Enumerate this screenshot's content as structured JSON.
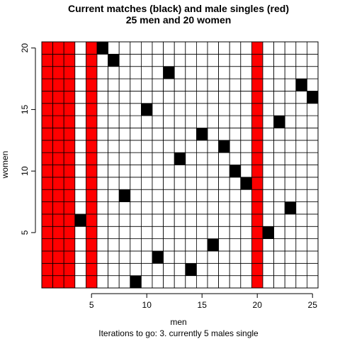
{
  "chart_data": {
    "type": "heatmap",
    "title_line1": "Current matches (black) and male singles (red)",
    "title_line2": "25 men and 20 women",
    "xlabel": "men",
    "ylabel": "women",
    "subtitle": "Iterations to go: 3. currently 5 males single",
    "xlim": [
      0.5,
      25.5
    ],
    "ylim": [
      0.5,
      20.5
    ],
    "x_ticks": [
      5,
      10,
      15,
      20,
      25
    ],
    "y_ticks": [
      5,
      10,
      15,
      20
    ],
    "n_men": 25,
    "n_women": 20,
    "single_men": [
      1,
      2,
      3,
      5,
      20
    ],
    "matches": [
      {
        "man": 4,
        "woman": 6
      },
      {
        "man": 6,
        "woman": 20
      },
      {
        "man": 7,
        "woman": 19
      },
      {
        "man": 8,
        "woman": 8
      },
      {
        "man": 9,
        "woman": 1
      },
      {
        "man": 10,
        "woman": 15
      },
      {
        "man": 11,
        "woman": 3
      },
      {
        "man": 12,
        "woman": 18
      },
      {
        "man": 13,
        "woman": 11
      },
      {
        "man": 14,
        "woman": 2
      },
      {
        "man": 15,
        "woman": 13
      },
      {
        "man": 16,
        "woman": 4
      },
      {
        "man": 17,
        "woman": 12
      },
      {
        "man": 18,
        "woman": 10
      },
      {
        "man": 19,
        "woman": 9
      },
      {
        "man": 21,
        "woman": 5
      },
      {
        "man": 22,
        "woman": 14
      },
      {
        "man": 23,
        "woman": 7
      },
      {
        "man": 24,
        "woman": 17
      },
      {
        "man": 25,
        "woman": 16
      }
    ],
    "colors": {
      "match": "#000000",
      "single": "#ff0000",
      "empty": "#ffffff",
      "grid": "#000000"
    }
  }
}
